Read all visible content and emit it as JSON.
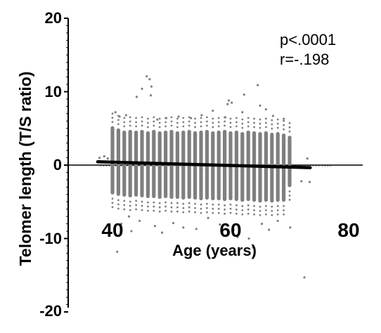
{
  "chart_data": {
    "type": "scatter",
    "title": "",
    "xlabel": "Age (years)",
    "ylabel": "Telomer length (T/S ratio)",
    "xlim": [
      35,
      80
    ],
    "ylim": [
      -20,
      20
    ],
    "x_ticks": [
      40,
      60,
      80
    ],
    "y_ticks": [
      -20,
      -10,
      0,
      10,
      20
    ],
    "x_tick_labels": [
      "40",
      "60",
      "80"
    ],
    "y_tick_labels": [
      "-20",
      "-10",
      "0",
      "10",
      "20"
    ],
    "annotations": [
      "p<.0001",
      "r=-.198"
    ],
    "grid": false,
    "series": [
      {
        "kind": "points",
        "color": "#7f7f7f",
        "columns": [
          {
            "x": 40,
            "y_min": -4.0,
            "y_max": 5.3
          },
          {
            "x": 41,
            "y_min": -4.2,
            "y_max": 5.0
          },
          {
            "x": 42,
            "y_min": -4.3,
            "y_max": 4.7
          },
          {
            "x": 43,
            "y_min": -4.4,
            "y_max": 4.8
          },
          {
            "x": 44,
            "y_min": -4.3,
            "y_max": 4.7
          },
          {
            "x": 45,
            "y_min": -4.4,
            "y_max": 4.8
          },
          {
            "x": 46,
            "y_min": -4.5,
            "y_max": 4.6
          },
          {
            "x": 47,
            "y_min": -4.5,
            "y_max": 4.8
          },
          {
            "x": 48,
            "y_min": -4.6,
            "y_max": 4.6
          },
          {
            "x": 49,
            "y_min": -4.5,
            "y_max": 4.7
          },
          {
            "x": 50,
            "y_min": -4.6,
            "y_max": 4.8
          },
          {
            "x": 51,
            "y_min": -4.6,
            "y_max": 4.6
          },
          {
            "x": 52,
            "y_min": -4.7,
            "y_max": 4.7
          },
          {
            "x": 53,
            "y_min": -4.6,
            "y_max": 4.8
          },
          {
            "x": 54,
            "y_min": -4.7,
            "y_max": 4.6
          },
          {
            "x": 55,
            "y_min": -4.8,
            "y_max": 4.7
          },
          {
            "x": 56,
            "y_min": -4.7,
            "y_max": 4.8
          },
          {
            "x": 57,
            "y_min": -4.8,
            "y_max": 4.6
          },
          {
            "x": 58,
            "y_min": -4.8,
            "y_max": 4.7
          },
          {
            "x": 59,
            "y_min": -4.9,
            "y_max": 4.8
          },
          {
            "x": 60,
            "y_min": -4.8,
            "y_max": 4.6
          },
          {
            "x": 61,
            "y_min": -4.9,
            "y_max": 4.7
          },
          {
            "x": 62,
            "y_min": -5.0,
            "y_max": 4.5
          },
          {
            "x": 63,
            "y_min": -4.9,
            "y_max": 4.7
          },
          {
            "x": 64,
            "y_min": -5.0,
            "y_max": 4.6
          },
          {
            "x": 65,
            "y_min": -5.1,
            "y_max": 4.5
          },
          {
            "x": 66,
            "y_min": -5.0,
            "y_max": 4.6
          },
          {
            "x": 67,
            "y_min": -5.1,
            "y_max": 4.4
          },
          {
            "x": 68,
            "y_min": -5.0,
            "y_max": 4.5
          },
          {
            "x": 69,
            "y_min": -5.0,
            "y_max": 4.3
          },
          {
            "x": 70,
            "y_min": -3.0,
            "y_max": 4.0
          }
        ],
        "outliers": [
          [
            40.5,
            7.2
          ],
          [
            40.6,
            -9.5
          ],
          [
            40.8,
            -11.8
          ],
          [
            41.2,
            6.6
          ],
          [
            41.5,
            -8.0
          ],
          [
            42.3,
            6.8
          ],
          [
            42.8,
            -7.0
          ],
          [
            43.2,
            -9.0
          ],
          [
            44.1,
            9.3
          ],
          [
            44.6,
            -7.6
          ],
          [
            45.0,
            10.4
          ],
          [
            45.8,
            12.1
          ],
          [
            46.3,
            11.7
          ],
          [
            46.5,
            9.5
          ],
          [
            46.6,
            10.7
          ],
          [
            47.2,
            -8.3
          ],
          [
            47.6,
            6.2
          ],
          [
            48.4,
            -9.2
          ],
          [
            49.1,
            6.4
          ],
          [
            50.3,
            -7.9
          ],
          [
            51.2,
            6.6
          ],
          [
            52.0,
            -8.5
          ],
          [
            53.3,
            6.4
          ],
          [
            54.2,
            -8.7
          ],
          [
            55.1,
            6.8
          ],
          [
            56.2,
            -7.2
          ],
          [
            57.0,
            7.4
          ],
          [
            58.2,
            -8.1
          ],
          [
            59.1,
            6.5
          ],
          [
            59.5,
            8.3
          ],
          [
            59.7,
            8.8
          ],
          [
            60.2,
            8.5
          ],
          [
            60.5,
            -8.8
          ],
          [
            61.2,
            -9.8
          ],
          [
            62.0,
            7.2
          ],
          [
            62.3,
            9.6
          ],
          [
            63.1,
            -10.0
          ],
          [
            63.8,
            -11.2
          ],
          [
            64.0,
            -12.3
          ],
          [
            64.6,
            10.9
          ],
          [
            65.0,
            8.1
          ],
          [
            65.3,
            -8.0
          ],
          [
            66.0,
            7.6
          ],
          [
            66.5,
            -8.8
          ],
          [
            67.2,
            6.7
          ],
          [
            68.0,
            -7.6
          ],
          [
            69.0,
            6.3
          ],
          [
            70.1,
            -8.5
          ],
          [
            72.0,
            -2.2
          ],
          [
            72.5,
            -15.3
          ],
          [
            73.0,
            0.9
          ],
          [
            73.4,
            -2.3
          ],
          [
            37.8,
            1.0
          ],
          [
            38.6,
            1.2
          ],
          [
            39.2,
            0.9
          ]
        ]
      },
      {
        "kind": "regression_line",
        "color": "#000000",
        "x": [
          37.5,
          73.5
        ],
        "y": [
          0.45,
          -0.35
        ]
      }
    ]
  }
}
